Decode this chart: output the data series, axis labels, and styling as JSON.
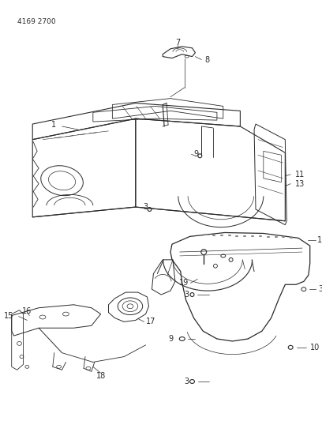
{
  "part_number": "4169 2700",
  "background_color": "#ffffff",
  "line_color": "#2a2a2a",
  "figsize": [
    4.08,
    5.33
  ],
  "dpi": 100
}
